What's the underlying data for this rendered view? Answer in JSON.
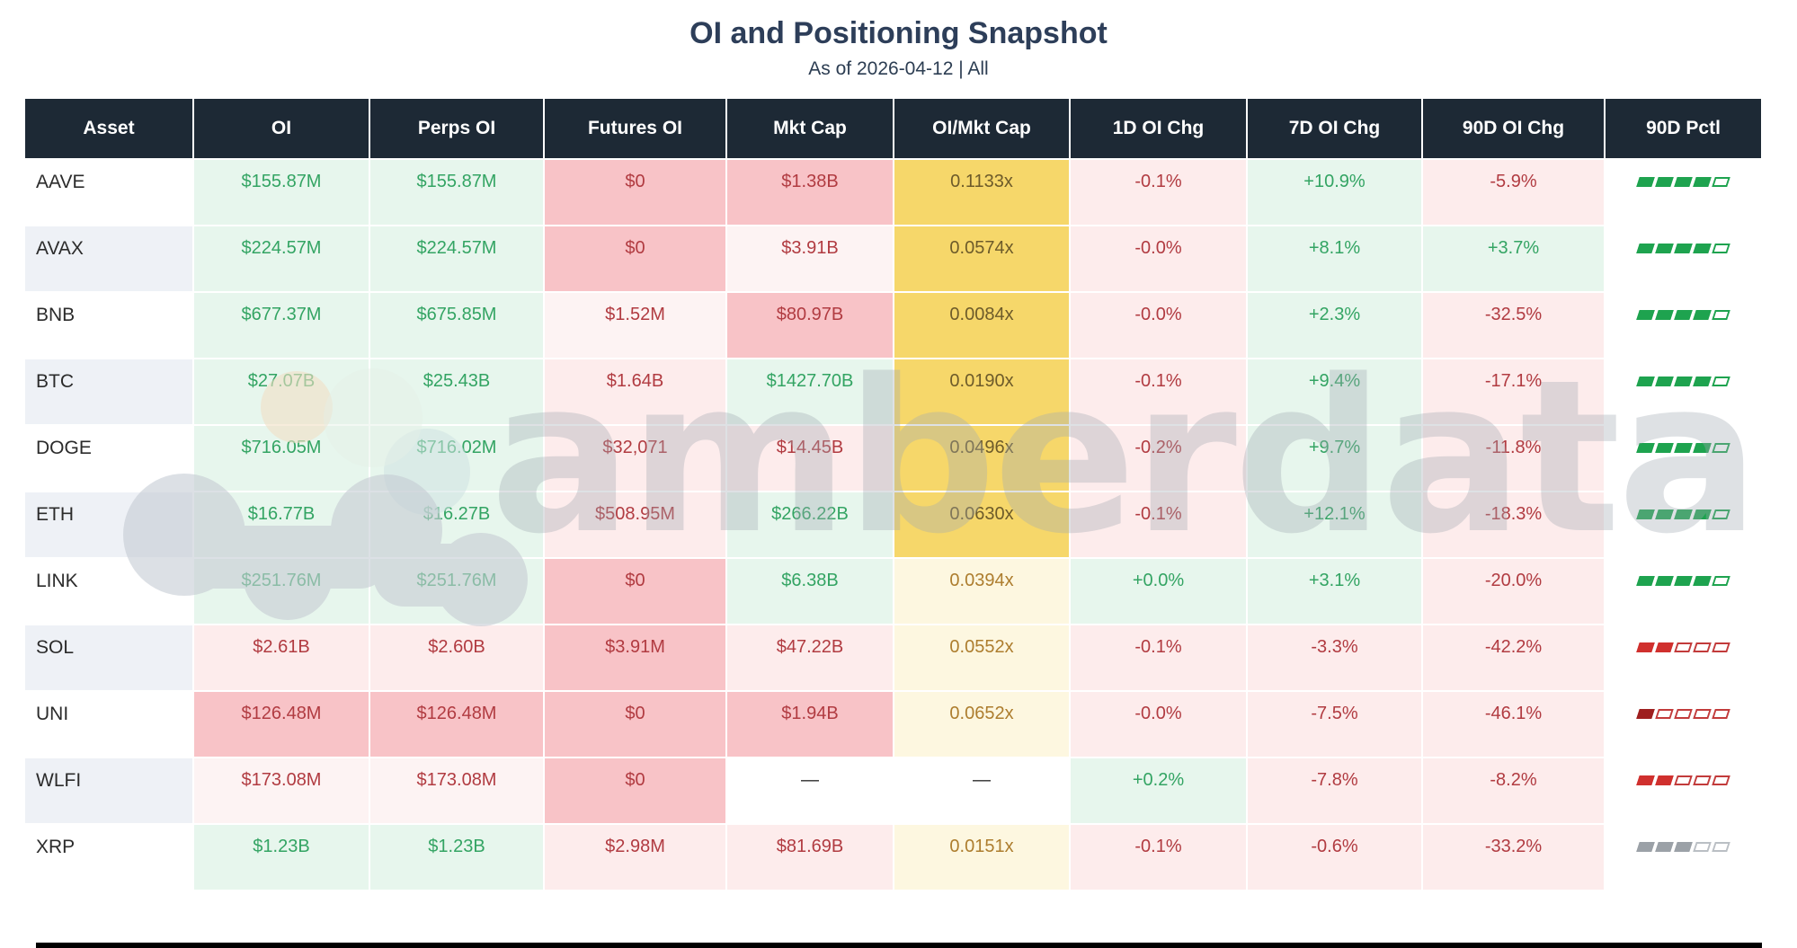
{
  "chart_data": {
    "type": "table",
    "title": "OI and Positioning Snapshot",
    "subtitle": "As of 2026-04-12 | All",
    "columns": [
      "Asset",
      "OI",
      "Perps OI",
      "Futures OI",
      "Mkt Cap",
      "OI/Mkt Cap",
      "1D OI Chg",
      "7D OI Chg",
      "90D OI Chg",
      "90D Pctl"
    ],
    "rows": [
      [
        "AAVE",
        "$155.87M",
        "$155.87M",
        "$0",
        "$1.38B",
        "0.1133x",
        "-0.1%",
        "+10.9%",
        "-5.9%",
        "4/5"
      ],
      [
        "AVAX",
        "$224.57M",
        "$224.57M",
        "$0",
        "$3.91B",
        "0.0574x",
        "-0.0%",
        "+8.1%",
        "+3.7%",
        "4/5"
      ],
      [
        "BNB",
        "$677.37M",
        "$675.85M",
        "$1.52M",
        "$80.97B",
        "0.0084x",
        "-0.0%",
        "+2.3%",
        "-32.5%",
        "4/5"
      ],
      [
        "BTC",
        "$27.07B",
        "$25.43B",
        "$1.64B",
        "$1427.70B",
        "0.0190x",
        "-0.1%",
        "+9.4%",
        "-17.1%",
        "4/5"
      ],
      [
        "DOGE",
        "$716.05M",
        "$716.02M",
        "$32,071",
        "$14.45B",
        "0.0496x",
        "-0.2%",
        "+9.7%",
        "-11.8%",
        "4/5"
      ],
      [
        "ETH",
        "$16.77B",
        "$16.27B",
        "$508.95M",
        "$266.22B",
        "0.0630x",
        "-0.1%",
        "+12.1%",
        "-18.3%",
        "4/5"
      ],
      [
        "LINK",
        "$251.76M",
        "$251.76M",
        "$0",
        "$6.38B",
        "0.0394x",
        "+0.0%",
        "+3.1%",
        "-20.0%",
        "4/5"
      ],
      [
        "SOL",
        "$2.61B",
        "$2.60B",
        "$3.91M",
        "$47.22B",
        "0.0552x",
        "-0.1%",
        "-3.3%",
        "-42.2%",
        "2/5"
      ],
      [
        "UNI",
        "$126.48M",
        "$126.48M",
        "$0",
        "$1.94B",
        "0.0652x",
        "-0.0%",
        "-7.5%",
        "-46.1%",
        "1/5"
      ],
      [
        "WLFI",
        "$173.08M",
        "$173.08M",
        "$0",
        "—",
        "—",
        "+0.2%",
        "-7.8%",
        "-8.2%",
        "2/5"
      ],
      [
        "XRP",
        "$1.23B",
        "$1.23B",
        "$2.98M",
        "$81.69B",
        "0.0151x",
        "-0.1%",
        "-0.6%",
        "-33.2%",
        "3/5"
      ]
    ]
  },
  "watermark": {
    "text": "amberdata"
  },
  "styles": {
    "colors": {
      "header_bg": "#1d2935",
      "header_text": "#ffffff",
      "bg": {
        "white": "#ffffff",
        "stripe": "#eef1f6",
        "green": "#e7f6ed",
        "pink": "#fdecec",
        "pinkS": "#f8c3c7",
        "pinkF": "#fdf3f3",
        "gold": "#f6d76a",
        "paleY": "#fdf7e0"
      },
      "text": {
        "dark": "#2b2b2b",
        "green": "#33a463",
        "red": "#b13b41",
        "goldT": "#6d5b2a",
        "paleT": "#ad7d2e"
      },
      "blocks": {
        "gf": {
          "f": "#1ea34f"
        },
        "go": {
          "o": "#1ea34f"
        },
        "rf": {
          "f": "#d0302e"
        },
        "rd": {
          "f": "#9e1f1f"
        },
        "ro": {
          "o": "#c23b3b"
        },
        "yf": {
          "f": "#9ba1a7"
        },
        "yo": {
          "o": "#babfc4"
        }
      }
    },
    "cell_bg": [
      [
        "white",
        "green",
        "green",
        "pinkS",
        "pinkS",
        "gold",
        "pink",
        "green",
        "pink",
        "white"
      ],
      [
        "stripe",
        "green",
        "green",
        "pinkS",
        "pinkF",
        "gold",
        "pink",
        "green",
        "green",
        "white"
      ],
      [
        "white",
        "green",
        "green",
        "pinkF",
        "pinkS",
        "gold",
        "pink",
        "green",
        "pink",
        "white"
      ],
      [
        "stripe",
        "green",
        "green",
        "pink",
        "green",
        "gold",
        "pink",
        "green",
        "pink",
        "white"
      ],
      [
        "white",
        "green",
        "green",
        "pink",
        "pink",
        "gold",
        "pink",
        "green",
        "pink",
        "white"
      ],
      [
        "stripe",
        "green",
        "green",
        "pink",
        "green",
        "gold",
        "pink",
        "green",
        "pink",
        "white"
      ],
      [
        "white",
        "green",
        "green",
        "pinkS",
        "green",
        "paleY",
        "green",
        "green",
        "pink",
        "white"
      ],
      [
        "stripe",
        "pink",
        "pink",
        "pinkS",
        "pink",
        "paleY",
        "pink",
        "pink",
        "pink",
        "white"
      ],
      [
        "white",
        "pinkS",
        "pinkS",
        "pinkS",
        "pinkS",
        "paleY",
        "pink",
        "pink",
        "pink",
        "white"
      ],
      [
        "stripe",
        "pinkF",
        "pinkF",
        "pinkS",
        "white",
        "white",
        "green",
        "pink",
        "pink",
        "white"
      ],
      [
        "white",
        "green",
        "green",
        "pink",
        "pink",
        "paleY",
        "pink",
        "pink",
        "pink",
        "white"
      ]
    ],
    "cell_color": [
      [
        "dark",
        "green",
        "green",
        "red",
        "red",
        "goldT",
        "red",
        "green",
        "red",
        "-"
      ],
      [
        "dark",
        "green",
        "green",
        "red",
        "red",
        "goldT",
        "red",
        "green",
        "green",
        "-"
      ],
      [
        "dark",
        "green",
        "green",
        "red",
        "red",
        "goldT",
        "red",
        "green",
        "red",
        "-"
      ],
      [
        "dark",
        "green",
        "green",
        "red",
        "green",
        "goldT",
        "red",
        "green",
        "red",
        "-"
      ],
      [
        "dark",
        "green",
        "green",
        "red",
        "red",
        "goldT",
        "red",
        "green",
        "red",
        "-"
      ],
      [
        "dark",
        "green",
        "green",
        "red",
        "green",
        "goldT",
        "red",
        "green",
        "red",
        "-"
      ],
      [
        "dark",
        "green",
        "green",
        "red",
        "green",
        "paleT",
        "green",
        "green",
        "red",
        "-"
      ],
      [
        "dark",
        "red",
        "red",
        "red",
        "red",
        "paleT",
        "red",
        "red",
        "red",
        "-"
      ],
      [
        "dark",
        "red",
        "red",
        "red",
        "red",
        "paleT",
        "red",
        "red",
        "red",
        "-"
      ],
      [
        "dark",
        "red",
        "red",
        "red",
        "dark",
        "dark",
        "green",
        "red",
        "red",
        "-"
      ],
      [
        "dark",
        "green",
        "green",
        "red",
        "red",
        "paleT",
        "red",
        "red",
        "red",
        "-"
      ]
    ],
    "pctl_blocks": [
      [
        "gf",
        "gf",
        "gf",
        "gf",
        "go"
      ],
      [
        "gf",
        "gf",
        "gf",
        "gf",
        "go"
      ],
      [
        "gf",
        "gf",
        "gf",
        "gf",
        "go"
      ],
      [
        "gf",
        "gf",
        "gf",
        "gf",
        "go"
      ],
      [
        "gf",
        "gf",
        "gf",
        "gf",
        "go"
      ],
      [
        "gf",
        "gf",
        "gf",
        "gf",
        "go"
      ],
      [
        "gf",
        "gf",
        "gf",
        "gf",
        "go"
      ],
      [
        "rf",
        "rf",
        "ro",
        "ro",
        "ro"
      ],
      [
        "rd",
        "ro",
        "ro",
        "ro",
        "ro"
      ],
      [
        "rf",
        "rf",
        "ro",
        "ro",
        "ro"
      ],
      [
        "yf",
        "yf",
        "yf",
        "yo",
        "yo"
      ]
    ]
  }
}
